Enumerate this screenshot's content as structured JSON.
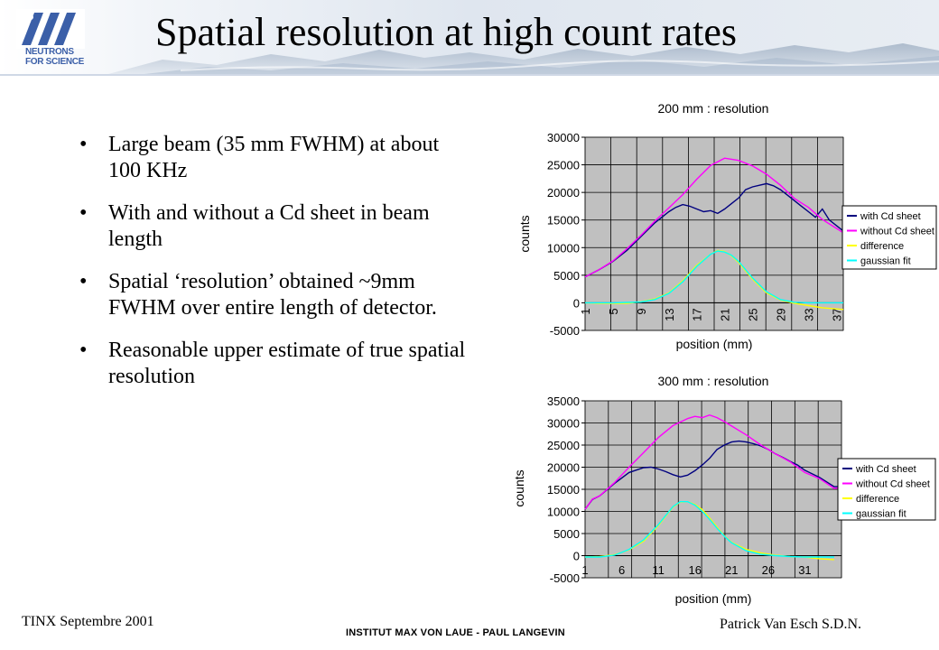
{
  "header": {
    "logo_text_line1": "NEUTRONS",
    "logo_text_line2": "FOR SCIENCE",
    "title": "Spatial resolution at high count rates"
  },
  "bullets": [
    "Large beam (35 mm FWHM) at about 100 KHz",
    "With and without a Cd sheet in beam length",
    "Spatial ‘resolution’ obtained ~9mm FWHM over entire length of detector.",
    "Reasonable upper estimate of true spatial resolution"
  ],
  "footer": {
    "left": "TINX Septembre 2001",
    "center": "INSTITUT MAX VON LAUE - PAUL LANGEVIN",
    "right": "Patrick Van Esch S.D.N."
  },
  "colors": {
    "with_cd": "#00007f",
    "without_cd": "#ff00ff",
    "difference": "#ffff00",
    "gaussian": "#00ffff",
    "plot_bg": "#c0c0c0"
  },
  "chart_data": [
    {
      "type": "line",
      "title": "200 mm : resolution",
      "xlabel": "position (mm)",
      "ylabel": "counts",
      "ylim": [
        -5000,
        30000
      ],
      "yticks": [
        -5000,
        0,
        5000,
        10000,
        15000,
        20000,
        25000,
        30000
      ],
      "ytick_labels": [
        "-5000",
        "0",
        "5000",
        "10000",
        "15000",
        "20000",
        "25000",
        "30000"
      ],
      "xlim": [
        1,
        38
      ],
      "xticks": [
        1,
        5,
        9,
        13,
        17,
        21,
        25,
        29,
        33,
        37
      ],
      "xtick_labels": [
        "1",
        "5",
        "9",
        "13",
        "17",
        "21",
        "25",
        "29",
        "33",
        "37"
      ],
      "xtick_rotation": -90,
      "grid": true,
      "legend": "right",
      "series": [
        {
          "name": "with Cd sheet",
          "color": "#00007f",
          "x": [
            1,
            3,
            5,
            7,
            9,
            11,
            13,
            14,
            15,
            16,
            17,
            18,
            19,
            20,
            21,
            22,
            23,
            24,
            25,
            26,
            27,
            28,
            29,
            30,
            31,
            32,
            33,
            34,
            35,
            36,
            37,
            38
          ],
          "values": [
            4700,
            6000,
            7500,
            9500,
            12000,
            14500,
            16500,
            17300,
            17800,
            17500,
            17000,
            16500,
            16700,
            16200,
            17000,
            18000,
            19000,
            20500,
            21000,
            21300,
            21600,
            21200,
            20500,
            19500,
            18500,
            17500,
            16500,
            15500,
            17000,
            15000,
            14000,
            13000
          ]
        },
        {
          "name": "without Cd sheet",
          "color": "#ff00ff",
          "x": [
            1,
            3,
            5,
            7,
            9,
            11,
            13,
            15,
            17,
            19,
            21,
            23,
            25,
            27,
            29,
            31,
            33,
            35,
            36,
            37,
            38
          ],
          "values": [
            4700,
            6000,
            7600,
            9800,
            12200,
            14800,
            17200,
            19600,
            22400,
            24900,
            26200,
            25800,
            24800,
            23300,
            21300,
            18900,
            17300,
            15100,
            14300,
            13500,
            12700
          ]
        },
        {
          "name": "difference",
          "color": "#ffff00",
          "x": [
            1,
            3,
            5,
            7,
            9,
            11,
            13,
            15,
            17,
            19,
            20,
            21,
            22,
            23,
            25,
            27,
            29,
            31,
            33,
            35,
            37,
            38
          ],
          "values": [
            0,
            -100,
            -100,
            -100,
            200,
            700,
            1800,
            4000,
            6800,
            8800,
            9500,
            9300,
            8500,
            7300,
            4300,
            1800,
            500,
            -100,
            -500,
            -900,
            -1100,
            -1200
          ]
        },
        {
          "name": "gaussian fit",
          "color": "#00ffff",
          "x": [
            1,
            5,
            9,
            11,
            13,
            15,
            17,
            19,
            20,
            21,
            22,
            23,
            25,
            27,
            29,
            31,
            33,
            35,
            37,
            38
          ],
          "values": [
            0,
            0,
            150,
            600,
            1700,
            3800,
            6600,
            8800,
            9400,
            9200,
            8600,
            7500,
            4500,
            2000,
            600,
            100,
            0,
            0,
            0,
            0
          ]
        }
      ]
    },
    {
      "type": "line",
      "title": "300 mm : resolution",
      "xlabel": "position (mm)",
      "ylabel": "counts",
      "ylim": [
        -5000,
        35000
      ],
      "yticks": [
        -5000,
        0,
        5000,
        10000,
        15000,
        20000,
        25000,
        30000,
        35000
      ],
      "ytick_labels": [
        "-5000",
        "0",
        "5000",
        "10000",
        "15000",
        "20000",
        "25000",
        "30000",
        "35000"
      ],
      "xlim": [
        1,
        36
      ],
      "xticks": [
        1,
        6,
        11,
        16,
        21,
        26,
        31
      ],
      "xtick_labels": [
        "1",
        "6",
        "11",
        "16",
        "21",
        "26",
        "31"
      ],
      "grid": true,
      "legend": "right",
      "series": [
        {
          "name": "with Cd sheet",
          "color": "#00007f",
          "x": [
            1,
            2,
            3,
            5,
            7,
            9,
            10,
            11,
            12,
            13,
            14,
            15,
            16,
            17,
            18,
            19,
            20,
            21,
            22,
            23,
            24,
            25,
            26,
            27,
            28,
            29,
            30,
            31,
            33,
            35,
            36
          ],
          "values": [
            10500,
            12700,
            13500,
            16300,
            18800,
            19900,
            20000,
            19600,
            19000,
            18300,
            17800,
            18200,
            19200,
            20500,
            22000,
            24000,
            25000,
            25700,
            25900,
            25700,
            25300,
            24800,
            24000,
            23000,
            22200,
            21300,
            20500,
            19300,
            17700,
            15600,
            15600
          ]
        },
        {
          "name": "without Cd sheet",
          "color": "#ff00ff",
          "x": [
            1,
            2,
            3,
            5,
            7,
            9,
            11,
            13,
            15,
            16,
            17,
            18,
            19,
            20,
            21,
            22,
            23,
            25,
            27,
            29,
            31,
            33,
            35,
            36
          ],
          "values": [
            10500,
            12800,
            13500,
            16500,
            20000,
            23300,
            26700,
            29400,
            31000,
            31500,
            31200,
            31800,
            31200,
            30300,
            29300,
            28300,
            27300,
            25000,
            23000,
            21200,
            18800,
            17400,
            15200,
            15400
          ]
        },
        {
          "name": "difference",
          "color": "#ffff00",
          "x": [
            1,
            3,
            5,
            7,
            9,
            11,
            13,
            14,
            15,
            16,
            17,
            18,
            19,
            20,
            21,
            23,
            25,
            27,
            29,
            31,
            33,
            35
          ],
          "values": [
            -300,
            -200,
            200,
            1300,
            3300,
            6800,
            11000,
            12100,
            12200,
            11600,
            10400,
            8500,
            6500,
            4500,
            3000,
            1400,
            600,
            100,
            -200,
            -300,
            -700,
            -900
          ]
        },
        {
          "name": "gaussian fit",
          "color": "#00ffff",
          "x": [
            1,
            3,
            5,
            7,
            9,
            11,
            13,
            14,
            15,
            16,
            17,
            18,
            19,
            20,
            21,
            23,
            25,
            27,
            29,
            31,
            33,
            35
          ],
          "values": [
            -300,
            -300,
            100,
            1400,
            3600,
            7000,
            11100,
            12200,
            12200,
            11400,
            10000,
            8200,
            6200,
            4400,
            2900,
            1100,
            300,
            0,
            -200,
            -300,
            -300,
            -300
          ]
        }
      ]
    }
  ]
}
